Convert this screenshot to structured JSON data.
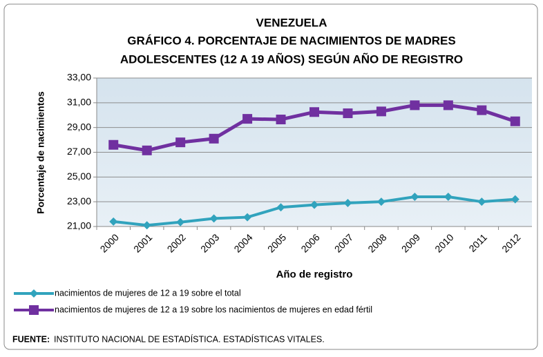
{
  "chart_data": {
    "type": "line",
    "title": [
      "VENEZUELA",
      "GRÁFICO 4. PORCENTAJE DE NACIMIENTOS DE MADRES",
      "ADOLESCENTES (12 A 19 AÑOS) SEGÚN AÑO DE REGISTRO"
    ],
    "y_label": "Porcentaje de nacimientos",
    "x_label": "Año de registro",
    "categories": [
      "2000",
      "2001",
      "2002",
      "2003",
      "2004",
      "2005",
      "2006",
      "2007",
      "2008",
      "2009",
      "2010",
      "2011",
      "2012"
    ],
    "series": [
      {
        "name": "nacimientos de mujeres de 12 a 19 sobre el total",
        "color": "#31a3bd",
        "marker": "diamond",
        "values": [
          21.4,
          21.1,
          21.35,
          21.65,
          21.75,
          22.55,
          22.75,
          22.9,
          23.0,
          23.4,
          23.4,
          23.0,
          23.2
        ]
      },
      {
        "name": "nacimientos de mujeres de 12 a 19 sobre los nacimientos de mujeres en edad fértil",
        "color": "#7030a0",
        "marker": "square",
        "values": [
          27.6,
          27.15,
          27.8,
          28.1,
          29.7,
          29.65,
          30.25,
          30.15,
          30.3,
          30.8,
          30.8,
          30.4,
          29.5
        ]
      }
    ],
    "ylim": [
      21,
      33
    ],
    "yticks": [
      {
        "value": 21,
        "label": "21,00"
      },
      {
        "value": 23,
        "label": "23,00"
      },
      {
        "value": 25,
        "label": "25,00"
      },
      {
        "value": 27,
        "label": "27,00"
      },
      {
        "value": 29,
        "label": "29,00"
      },
      {
        "value": 31,
        "label": "31,00"
      },
      {
        "value": 33,
        "label": "33,00"
      }
    ],
    "grid": true,
    "legend": "bottom",
    "source_label": "FUENTE:",
    "source": "INSTITUTO NACIONAL DE ESTADÍSTICA. ESTADÍSTICAS VITALES."
  }
}
